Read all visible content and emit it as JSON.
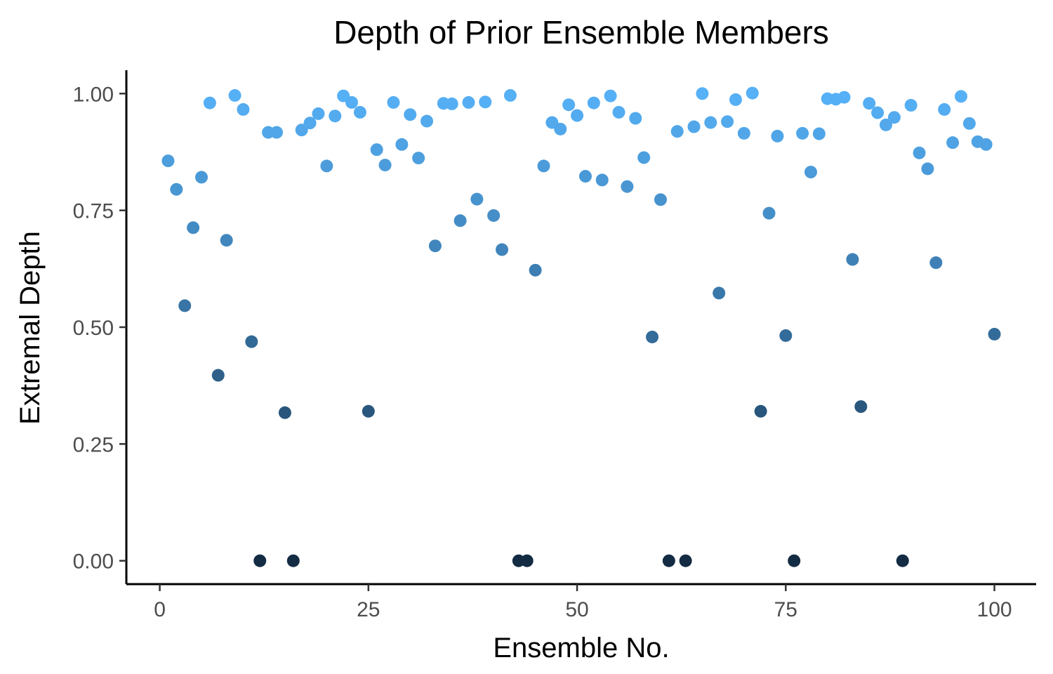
{
  "chart_data": {
    "type": "scatter",
    "title": "Depth of Prior Ensemble Members",
    "xlabel": "Ensemble No.",
    "ylabel": "Extremal Depth",
    "xlim": [
      -4,
      105
    ],
    "ylim": [
      -0.05,
      1.05
    ],
    "xticks": [
      0,
      25,
      50,
      75,
      100
    ],
    "xtick_labels": [
      "0",
      "25",
      "50",
      "75",
      "100"
    ],
    "yticks": [
      0,
      0.25,
      0.5,
      0.75,
      1.0
    ],
    "ytick_labels": [
      "0.00",
      "0.25",
      "0.50",
      "0.75",
      "1.00"
    ],
    "grid": false,
    "legend": "none",
    "color_scale": {
      "low": "#132b43",
      "high": "#56b1f7",
      "mapped_to": "y"
    },
    "x": [
      1,
      2,
      3,
      4,
      5,
      6,
      7,
      8,
      9,
      10,
      11,
      12,
      13,
      14,
      15,
      16,
      17,
      18,
      19,
      20,
      21,
      22,
      23,
      24,
      25,
      26,
      27,
      28,
      29,
      30,
      31,
      32,
      33,
      34,
      35,
      36,
      37,
      38,
      39,
      40,
      41,
      42,
      43,
      44,
      45,
      46,
      47,
      48,
      49,
      50,
      51,
      52,
      53,
      54,
      55,
      56,
      57,
      58,
      59,
      60,
      61,
      62,
      63,
      64,
      65,
      66,
      67,
      68,
      69,
      70,
      71,
      72,
      73,
      74,
      75,
      76,
      77,
      78,
      79,
      80,
      81,
      82,
      83,
      84,
      85,
      86,
      87,
      88,
      89,
      90,
      91,
      92,
      93,
      94,
      95,
      96,
      97,
      98,
      99,
      100
    ],
    "y": [
      0.856,
      0.795,
      0.546,
      0.713,
      0.821,
      0.98,
      0.397,
      0.686,
      0.996,
      0.966,
      0.469,
      0.0,
      0.917,
      0.917,
      0.317,
      0.0,
      0.922,
      0.937,
      0.957,
      0.845,
      0.952,
      0.995,
      0.981,
      0.96,
      0.32,
      0.88,
      0.847,
      0.981,
      0.891,
      0.955,
      0.862,
      0.941,
      0.674,
      0.979,
      0.978,
      0.728,
      0.981,
      0.774,
      0.982,
      0.739,
      0.666,
      0.996,
      0.0,
      0.0,
      0.622,
      0.845,
      0.938,
      0.924,
      0.976,
      0.953,
      0.823,
      0.98,
      0.815,
      0.995,
      0.96,
      0.801,
      0.947,
      0.863,
      0.479,
      0.773,
      0.0,
      0.919,
      0.0,
      0.929,
      1.0,
      0.938,
      0.573,
      0.94,
      0.987,
      0.915,
      1.001,
      0.32,
      0.744,
      0.909,
      0.482,
      0.0,
      0.915,
      0.832,
      0.914,
      0.989,
      0.988,
      0.992,
      0.645,
      0.33,
      0.979,
      0.959,
      0.933,
      0.949,
      0.0,
      0.975,
      0.873,
      0.839,
      0.638,
      0.966,
      0.895,
      0.994,
      0.936,
      0.897,
      0.891,
      0.485
    ]
  }
}
